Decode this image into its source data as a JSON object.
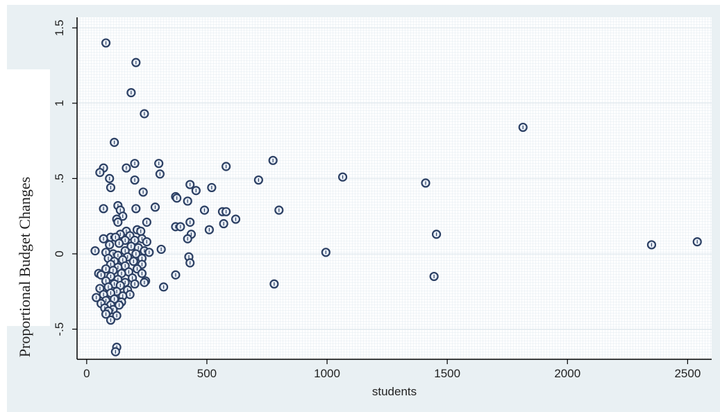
{
  "chart_data": {
    "type": "scatter",
    "title": "",
    "xlabel": "students",
    "ylabel": "Proportional Budget Changes",
    "xlim": [
      -40,
      2600
    ],
    "ylim": [
      -0.7,
      1.57
    ],
    "x_ticks": [
      0,
      500,
      1000,
      1500,
      2000,
      2500
    ],
    "x_tick_labels": [
      "0",
      "500",
      "1000",
      "1500",
      "2000",
      "2500"
    ],
    "y_ticks": [
      -0.5,
      0,
      0.5,
      1,
      1.5
    ],
    "y_tick_labels": [
      "-.5",
      "0",
      ".5",
      "1",
      "1.5"
    ],
    "grid": true,
    "legend": "none",
    "colors": {
      "marker_stroke": "#2b3f63",
      "marker_fill": "#e8eef6",
      "panel_bg": "#e9f0f3",
      "plot_bg": "#ffffff",
      "grid": "#e3ebf0"
    },
    "points": [
      [
        80,
        1.4
      ],
      [
        205,
        1.27
      ],
      [
        185,
        1.07
      ],
      [
        240,
        0.93
      ],
      [
        1815,
        0.84
      ],
      [
        115,
        0.74
      ],
      [
        775,
        0.62
      ],
      [
        300,
        0.6
      ],
      [
        200,
        0.6
      ],
      [
        580,
        0.58
      ],
      [
        70,
        0.57
      ],
      [
        165,
        0.57
      ],
      [
        55,
        0.54
      ],
      [
        305,
        0.53
      ],
      [
        1065,
        0.51
      ],
      [
        95,
        0.5
      ],
      [
        715,
        0.49
      ],
      [
        200,
        0.49
      ],
      [
        1410,
        0.47
      ],
      [
        430,
        0.46
      ],
      [
        100,
        0.44
      ],
      [
        520,
        0.44
      ],
      [
        455,
        0.42
      ],
      [
        235,
        0.41
      ],
      [
        370,
        0.38
      ],
      [
        375,
        0.37
      ],
      [
        420,
        0.35
      ],
      [
        130,
        0.32
      ],
      [
        285,
        0.31
      ],
      [
        205,
        0.3
      ],
      [
        70,
        0.3
      ],
      [
        140,
        0.29
      ],
      [
        490,
        0.29
      ],
      [
        800,
        0.29
      ],
      [
        565,
        0.28
      ],
      [
        580,
        0.28
      ],
      [
        150,
        0.25
      ],
      [
        620,
        0.23
      ],
      [
        125,
        0.23
      ],
      [
        130,
        0.21
      ],
      [
        430,
        0.21
      ],
      [
        250,
        0.21
      ],
      [
        570,
        0.2
      ],
      [
        370,
        0.18
      ],
      [
        390,
        0.18
      ],
      [
        165,
        0.15
      ],
      [
        210,
        0.16
      ],
      [
        225,
        0.15
      ],
      [
        510,
        0.16
      ],
      [
        435,
        0.13
      ],
      [
        1455,
        0.13
      ],
      [
        140,
        0.13
      ],
      [
        180,
        0.12
      ],
      [
        100,
        0.11
      ],
      [
        120,
        0.11
      ],
      [
        70,
        0.1
      ],
      [
        230,
        0.1
      ],
      [
        420,
        0.1
      ],
      [
        160,
        0.09
      ],
      [
        200,
        0.09
      ],
      [
        250,
        0.08
      ],
      [
        135,
        0.07
      ],
      [
        95,
        0.06
      ],
      [
        185,
        0.05
      ],
      [
        215,
        0.04
      ],
      [
        310,
        0.03
      ],
      [
        160,
        0.02
      ],
      [
        35,
        0.02
      ],
      [
        240,
        0.02
      ],
      [
        260,
        0.01
      ],
      [
        995,
        0.01
      ],
      [
        80,
        0.01
      ],
      [
        110,
        0.0
      ],
      [
        205,
        0.0
      ],
      [
        2350,
        0.06
      ],
      [
        2540,
        0.08
      ],
      [
        130,
        -0.01
      ],
      [
        170,
        -0.02
      ],
      [
        425,
        -0.02
      ],
      [
        230,
        -0.03
      ],
      [
        90,
        -0.03
      ],
      [
        150,
        -0.04
      ],
      [
        115,
        -0.05
      ],
      [
        195,
        -0.05
      ],
      [
        430,
        -0.06
      ],
      [
        100,
        -0.07
      ],
      [
        230,
        -0.07
      ],
      [
        160,
        -0.08
      ],
      [
        130,
        -0.09
      ],
      [
        210,
        -0.1
      ],
      [
        80,
        -0.1
      ],
      [
        110,
        -0.11
      ],
      [
        175,
        -0.12
      ],
      [
        50,
        -0.13
      ],
      [
        145,
        -0.13
      ],
      [
        60,
        -0.14
      ],
      [
        230,
        -0.13
      ],
      [
        370,
        -0.14
      ],
      [
        1445,
        -0.15
      ],
      [
        100,
        -0.15
      ],
      [
        190,
        -0.16
      ],
      [
        130,
        -0.17
      ],
      [
        80,
        -0.18
      ],
      [
        245,
        -0.18
      ],
      [
        240,
        -0.19
      ],
      [
        160,
        -0.19
      ],
      [
        200,
        -0.2
      ],
      [
        780,
        -0.2
      ],
      [
        115,
        -0.2
      ],
      [
        140,
        -0.21
      ],
      [
        90,
        -0.22
      ],
      [
        320,
        -0.22
      ],
      [
        55,
        -0.23
      ],
      [
        170,
        -0.24
      ],
      [
        125,
        -0.25
      ],
      [
        100,
        -0.26
      ],
      [
        70,
        -0.27
      ],
      [
        180,
        -0.27
      ],
      [
        150,
        -0.28
      ],
      [
        40,
        -0.29
      ],
      [
        115,
        -0.3
      ],
      [
        80,
        -0.31
      ],
      [
        145,
        -0.32
      ],
      [
        60,
        -0.33
      ],
      [
        100,
        -0.34
      ],
      [
        135,
        -0.34
      ],
      [
        75,
        -0.36
      ],
      [
        110,
        -0.37
      ],
      [
        90,
        -0.38
      ],
      [
        80,
        -0.4
      ],
      [
        125,
        -0.41
      ],
      [
        100,
        -0.44
      ],
      [
        125,
        -0.62
      ],
      [
        120,
        -0.65
      ]
    ]
  }
}
